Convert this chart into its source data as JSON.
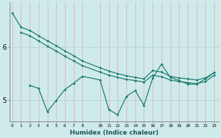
{
  "background_color": "#ceeaea",
  "grid_color_v": "#dbbaba",
  "grid_color_h": "#b8d4d4",
  "line_color": "#1a7a6e",
  "xlabel": "Humidex (Indice chaleur)",
  "x_ticks": [
    0,
    1,
    2,
    3,
    4,
    5,
    6,
    7,
    8,
    10,
    11,
    12,
    13,
    14,
    15,
    16,
    17,
    18,
    19,
    20,
    21,
    22,
    23
  ],
  "ylim": [
    4.6,
    6.85
  ],
  "yticks": [
    5,
    6
  ],
  "xlim": [
    -0.3,
    23.5
  ],
  "line1_x": [
    0,
    1,
    2,
    3,
    4,
    5,
    6,
    7,
    8,
    10,
    11,
    12,
    13,
    14,
    15,
    16,
    17,
    18,
    19,
    20,
    21,
    22,
    23
  ],
  "line1_y": [
    6.65,
    6.38,
    6.32,
    6.22,
    6.12,
    6.03,
    5.93,
    5.84,
    5.74,
    5.61,
    5.55,
    5.5,
    5.46,
    5.43,
    5.4,
    5.56,
    5.53,
    5.45,
    5.42,
    5.4,
    5.38,
    5.42,
    5.52
  ],
  "line2_x": [
    1,
    2,
    3,
    4,
    5,
    6,
    7,
    8,
    10,
    11,
    12,
    13,
    14,
    15,
    16,
    17,
    18,
    19,
    20,
    21,
    22,
    23
  ],
  "line2_y": [
    6.28,
    6.22,
    6.12,
    6.02,
    5.93,
    5.83,
    5.74,
    5.65,
    5.53,
    5.47,
    5.43,
    5.39,
    5.37,
    5.34,
    5.47,
    5.44,
    5.38,
    5.35,
    5.33,
    5.31,
    5.35,
    5.47
  ],
  "line3_x": [
    2,
    3,
    4,
    5,
    6,
    7,
    8,
    10,
    11,
    12,
    13,
    14,
    15,
    16,
    17,
    18,
    19,
    20,
    21,
    22,
    23
  ],
  "line3_y": [
    5.28,
    5.22,
    4.78,
    4.99,
    5.2,
    5.32,
    5.45,
    5.38,
    4.82,
    4.72,
    5.07,
    5.18,
    4.9,
    5.42,
    5.68,
    5.43,
    5.37,
    5.3,
    5.3,
    5.4,
    5.52
  ]
}
